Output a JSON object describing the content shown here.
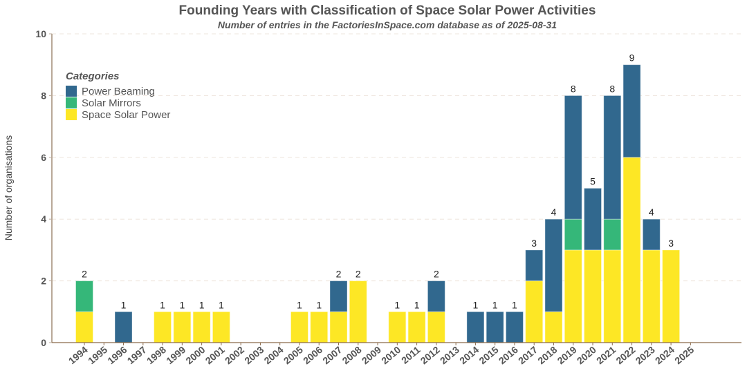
{
  "chart_data": {
    "type": "bar",
    "stacked": true,
    "title": "Founding Years with Classification of Space Solar Power Activities",
    "subtitle": "Number of entries in the FactoriesInSpace.com database as of 2025-08-31",
    "xlabel": "",
    "ylabel": "Number of organisations",
    "ylim": [
      0,
      10
    ],
    "yticks": [
      "0",
      "2",
      "4",
      "6",
      "8",
      "10"
    ],
    "grid": "horizontal dashed",
    "legend": {
      "title": "Categories",
      "placement": "top-left"
    },
    "categories": [
      "1994",
      "1995",
      "1996",
      "1997",
      "1998",
      "1999",
      "2000",
      "2001",
      "2002",
      "2003",
      "2004",
      "2005",
      "2006",
      "2007",
      "2008",
      "2009",
      "2010",
      "2011",
      "2012",
      "2013",
      "2014",
      "2015",
      "2016",
      "2017",
      "2018",
      "2019",
      "2020",
      "2021",
      "2022",
      "2023",
      "2024",
      "2025"
    ],
    "series": [
      {
        "name": "Space Solar Power",
        "color": "#fde725",
        "values": [
          1,
          0,
          0,
          0,
          1,
          1,
          1,
          1,
          0,
          0,
          0,
          1,
          1,
          1,
          2,
          0,
          1,
          1,
          1,
          0,
          0,
          0,
          0,
          2,
          1,
          3,
          3,
          3,
          6,
          3,
          3,
          0
        ]
      },
      {
        "name": "Solar Mirrors",
        "color": "#35b779",
        "values": [
          1,
          0,
          0,
          0,
          0,
          0,
          0,
          0,
          0,
          0,
          0,
          0,
          0,
          0,
          0,
          0,
          0,
          0,
          0,
          0,
          0,
          0,
          0,
          0,
          0,
          1,
          0,
          1,
          0,
          0,
          0,
          0
        ]
      },
      {
        "name": "Power Beaming",
        "color": "#31688e",
        "values": [
          0,
          0,
          1,
          0,
          0,
          0,
          0,
          0,
          0,
          0,
          0,
          0,
          0,
          1,
          0,
          0,
          0,
          0,
          1,
          0,
          1,
          1,
          1,
          1,
          3,
          4,
          2,
          4,
          3,
          1,
          0,
          0
        ]
      }
    ],
    "totals": [
      2,
      0,
      1,
      0,
      1,
      1,
      1,
      1,
      0,
      0,
      0,
      1,
      1,
      2,
      2,
      0,
      1,
      1,
      2,
      0,
      1,
      1,
      1,
      3,
      4,
      8,
      5,
      8,
      9,
      4,
      3,
      0
    ]
  }
}
